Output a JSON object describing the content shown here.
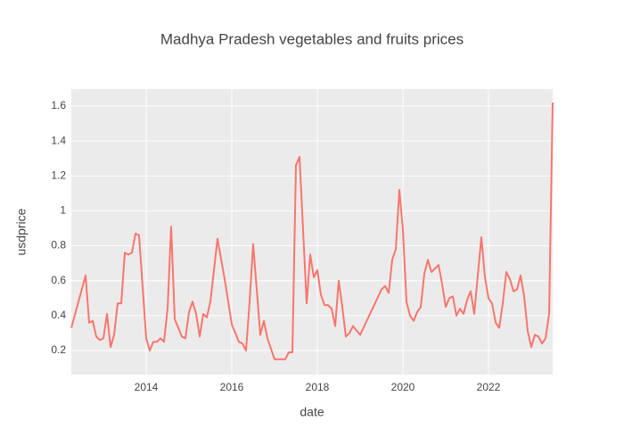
{
  "chart_data": {
    "type": "line",
    "title": "Madhya Pradesh vegetables and fruits prices",
    "x_label": "date",
    "y_label": "usdprice",
    "x": [
      "2012-04",
      "2012-08",
      "2012-09",
      "2012-10",
      "2012-11",
      "2012-12",
      "2013-01",
      "2013-02",
      "2013-03",
      "2013-04",
      "2013-05",
      "2013-06",
      "2013-07",
      "2013-08",
      "2013-09",
      "2013-10",
      "2013-11",
      "2014-01",
      "2014-02",
      "2014-03",
      "2014-04",
      "2014-05",
      "2014-06",
      "2014-07",
      "2014-08",
      "2014-09",
      "2014-10",
      "2014-11",
      "2014-12",
      "2015-01",
      "2015-02",
      "2015-03",
      "2015-04",
      "2015-05",
      "2015-06",
      "2015-07",
      "2015-09",
      "2015-11",
      "2016-01",
      "2016-03",
      "2016-04",
      "2016-05",
      "2016-06",
      "2016-07",
      "2016-09",
      "2016-10",
      "2016-11",
      "2017-01",
      "2017-04",
      "2017-05",
      "2017-06",
      "2017-07",
      "2017-08",
      "2017-10",
      "2017-11",
      "2017-12",
      "2018-01",
      "2018-02",
      "2018-03",
      "2018-04",
      "2018-05",
      "2018-06",
      "2018-07",
      "2018-08",
      "2018-09",
      "2018-10",
      "2018-11",
      "2019-01",
      "2019-07",
      "2019-08",
      "2019-09",
      "2019-10",
      "2019-11",
      "2019-12",
      "2020-01",
      "2020-02",
      "2020-03",
      "2020-04",
      "2020-05",
      "2020-06",
      "2020-07",
      "2020-08",
      "2020-09",
      "2020-10",
      "2020-11",
      "2020-12",
      "2021-01",
      "2021-02",
      "2021-03",
      "2021-04",
      "2021-05",
      "2021-06",
      "2021-07",
      "2021-08",
      "2021-09",
      "2021-11",
      "2021-12",
      "2022-01",
      "2022-02",
      "2022-03",
      "2022-04",
      "2022-05",
      "2022-06",
      "2022-07",
      "2022-08",
      "2022-09",
      "2022-10",
      "2022-11",
      "2022-12",
      "2023-01",
      "2023-02",
      "2023-03",
      "2023-04",
      "2023-05",
      "2023-06",
      "2023-07"
    ],
    "series": [
      {
        "name": "usdprice",
        "color": "#f8766d",
        "values": [
          0.33,
          0.63,
          0.36,
          0.37,
          0.28,
          0.26,
          0.27,
          0.41,
          0.22,
          0.29,
          0.47,
          0.47,
          0.76,
          0.75,
          0.76,
          0.87,
          0.86,
          0.27,
          0.2,
          0.25,
          0.25,
          0.27,
          0.25,
          0.44,
          0.91,
          0.38,
          0.33,
          0.28,
          0.27,
          0.42,
          0.48,
          0.41,
          0.28,
          0.41,
          0.39,
          0.48,
          0.84,
          0.61,
          0.35,
          0.25,
          0.24,
          0.2,
          0.48,
          0.81,
          0.29,
          0.37,
          0.27,
          0.15,
          0.15,
          0.19,
          0.19,
          1.26,
          1.31,
          0.47,
          0.75,
          0.62,
          0.66,
          0.52,
          0.46,
          0.46,
          0.44,
          0.34,
          0.6,
          0.45,
          0.28,
          0.3,
          0.34,
          0.29,
          0.55,
          0.57,
          0.53,
          0.72,
          0.78,
          1.12,
          0.89,
          0.48,
          0.4,
          0.37,
          0.42,
          0.45,
          0.64,
          0.72,
          0.65,
          0.67,
          0.69,
          0.58,
          0.45,
          0.5,
          0.51,
          0.4,
          0.44,
          0.41,
          0.49,
          0.54,
          0.41,
          0.85,
          0.62,
          0.5,
          0.47,
          0.36,
          0.33,
          0.47,
          0.65,
          0.61,
          0.54,
          0.55,
          0.63,
          0.51,
          0.31,
          0.22,
          0.29,
          0.28,
          0.24,
          0.27,
          0.41,
          1.62
        ]
      }
    ],
    "xlim": [
      "2012-04",
      "2023-07"
    ],
    "xticks": [
      "2014",
      "2016",
      "2018",
      "2020",
      "2022"
    ],
    "ylim": [
      0.062,
      1.697
    ],
    "yticks": [
      0.2,
      0.4,
      0.6,
      0.8,
      1,
      1.2,
      1.4,
      1.6
    ],
    "grid": true
  }
}
